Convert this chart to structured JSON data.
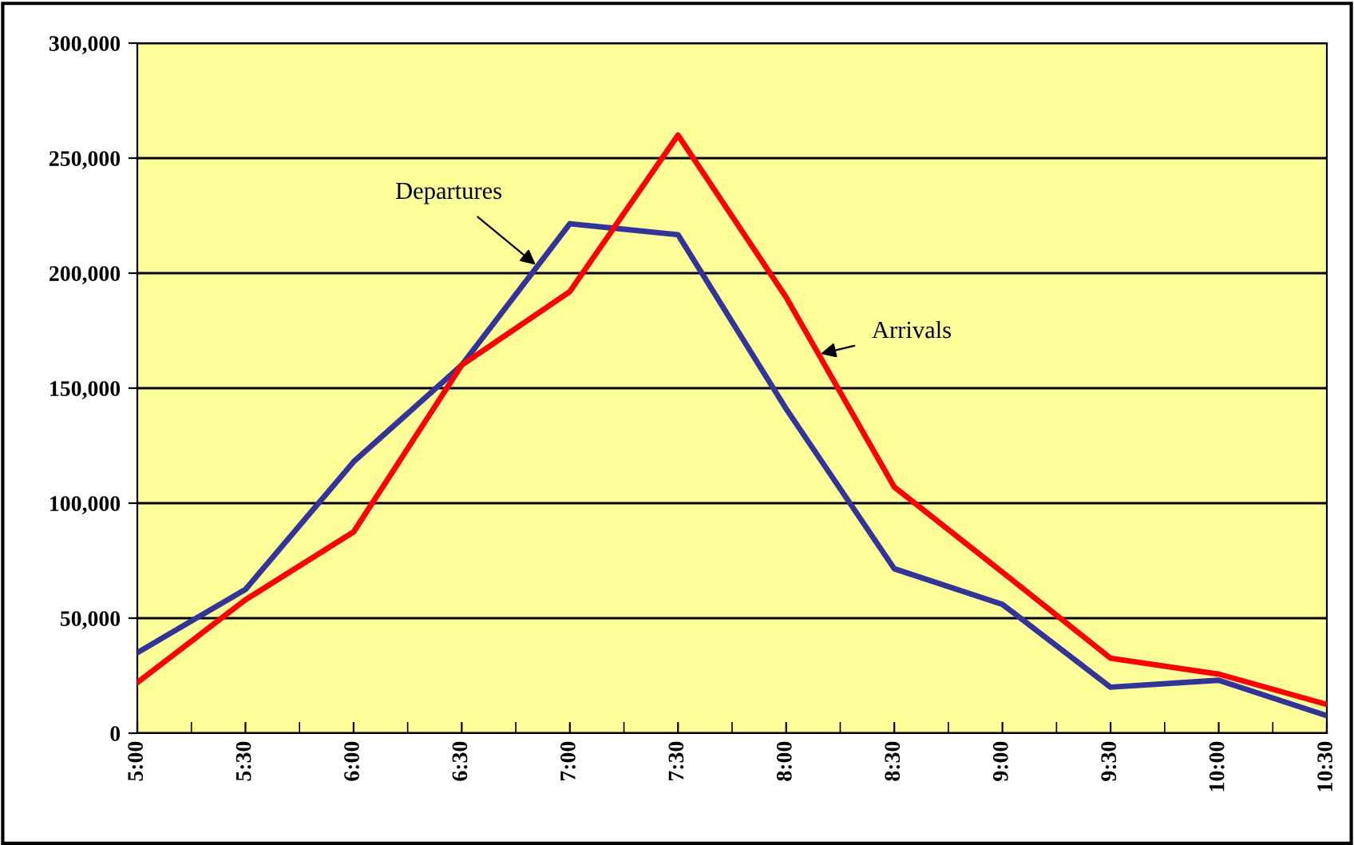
{
  "chart_data": {
    "type": "line",
    "categories": [
      "5:00",
      "5:30",
      "6:00",
      "6:30",
      "7:00",
      "7:30",
      "8:00",
      "8:30",
      "9:00",
      "9:30",
      "10:00",
      "10:30"
    ],
    "series": [
      {
        "name": "Departures",
        "color": "#333399",
        "values": [
          35000,
          62500,
          118000,
          160000,
          221500,
          216700,
          141000,
          71500,
          56000,
          20000,
          23000,
          7600
        ]
      },
      {
        "name": "Arrivals",
        "color": "#ff0000",
        "values": [
          22000,
          58000,
          87500,
          160000,
          192000,
          260000,
          189500,
          107000,
          70000,
          32600,
          25700,
          12500
        ]
      }
    ],
    "ylim": [
      0,
      300000
    ],
    "yticks": [
      {
        "value": 0,
        "label": "0"
      },
      {
        "value": 50000,
        "label": "50,000"
      },
      {
        "value": 100000,
        "label": "100,000"
      },
      {
        "value": 150000,
        "label": "150,000"
      },
      {
        "value": 200000,
        "label": "200,000"
      },
      {
        "value": 250000,
        "label": "250,000"
      },
      {
        "value": 300000,
        "label": "300,000"
      }
    ],
    "grid": "y",
    "legend": false,
    "marker": "none",
    "line_style": "solid"
  }
}
